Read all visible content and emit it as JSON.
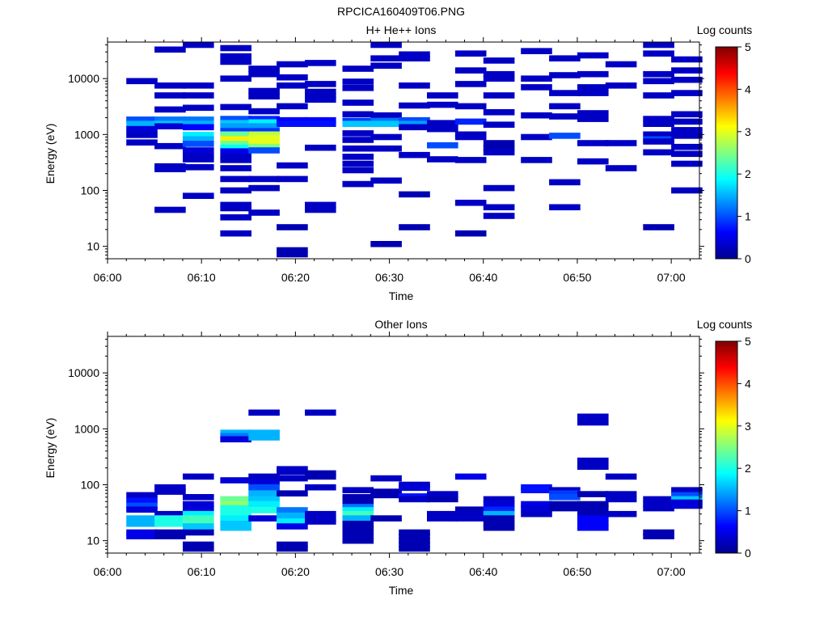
{
  "page": {
    "title": "RPCICA160409T06.PNG"
  },
  "colors": {
    "scale": [
      "#00008f",
      "#0000ff",
      "#0080ff",
      "#00ffff",
      "#80ff80",
      "#ffff00",
      "#ff8000",
      "#ff0000",
      "#800000"
    ]
  },
  "chart_data": [
    {
      "type": "heatmap",
      "title": "H+ He++ Ions",
      "xlabel": "Time",
      "ylabel": "Energy (eV)",
      "xlim": [
        "06:00",
        "07:03"
      ],
      "ylim": [
        6,
        45000
      ],
      "y_scale": "log",
      "x_ticks": [
        "06:00",
        "06:10",
        "06:20",
        "06:30",
        "06:40",
        "06:50",
        "07:00"
      ],
      "y_ticks": [
        "10",
        "100",
        "1000",
        "10000"
      ],
      "colorbar": {
        "label": "Log counts",
        "range": [
          0,
          5
        ],
        "ticks": [
          "0",
          "1",
          "2",
          "3",
          "4",
          "5"
        ]
      },
      "columns_start": [
        "06:02",
        "06:05",
        "06:08",
        "06:12",
        "06:15",
        "06:18",
        "06:21",
        "06:25",
        "06:28",
        "06:31",
        "06:34",
        "06:37",
        "06:40",
        "06:44",
        "06:47",
        "06:50",
        "06:53",
        "06:57",
        "07:00"
      ],
      "column_width_min": 3.3,
      "cells": [
        {
          "t": "06:02",
          "e": [
            9000,
            1850,
            1550,
            1250,
            980,
            720
          ],
          "v": [
            0.3,
            1.0,
            1.5,
            0.4,
            0.3,
            0.3
          ]
        },
        {
          "t": "06:05",
          "e": [
            33000,
            7500,
            5000,
            2800,
            1850,
            1550,
            1400,
            620,
            270,
            240,
            45
          ],
          "v": [
            0.3,
            0.3,
            0.3,
            0.3,
            1.2,
            1.6,
            0.4,
            0.3,
            0.3,
            0.3,
            0.3
          ]
        },
        {
          "t": "06:08",
          "e": [
            40000,
            7500,
            5000,
            3000,
            1850,
            1550,
            1350,
            980,
            820,
            680,
            520,
            410,
            360,
            260,
            80
          ],
          "v": [
            0.3,
            0.3,
            0.3,
            0.3,
            1.2,
            1.5,
            0.6,
            1.8,
            1.5,
            1.0,
            0.4,
            0.3,
            0.3,
            0.3,
            0.3
          ]
        },
        {
          "t": "06:12",
          "e": [
            35000,
            25000,
            20000,
            10000,
            3100,
            1900,
            1600,
            1400,
            1150,
            1000,
            820,
            680,
            580,
            500,
            400,
            350,
            250,
            160,
            100,
            55,
            48,
            33,
            17
          ],
          "v": [
            0.3,
            0.3,
            0.3,
            0.3,
            0.3,
            1.0,
            1.6,
            1.4,
            0.9,
            2.4,
            3.2,
            2.4,
            1.9,
            0.5,
            0.3,
            0.3,
            0.3,
            0.3,
            0.3,
            0.3,
            0.3,
            0.3,
            0.3
          ]
        },
        {
          "t": "06:15",
          "e": [
            15000,
            12000,
            6000,
            4800,
            2600,
            1900,
            1650,
            1400,
            1150,
            1000,
            850,
            720,
            600,
            520,
            160,
            110,
            40
          ],
          "v": [
            0.3,
            0.3,
            0.3,
            0.3,
            0.3,
            0.8,
            1.8,
            1.4,
            0.9,
            2.8,
            3.0,
            3.0,
            2.5,
            1.0,
            0.3,
            0.3,
            0.3
          ]
        },
        {
          "t": "06:18",
          "e": [
            18000,
            10500,
            7500,
            3200,
            1800,
            1550,
            280,
            160,
            22,
            8.5,
            7.2
          ],
          "v": [
            0.3,
            0.3,
            0.3,
            0.3,
            0.6,
            0.7,
            0.3,
            0.3,
            0.2,
            0.2,
            0.2
          ]
        },
        {
          "t": "06:21",
          "e": [
            19000,
            8000,
            5800,
            5000,
            4200,
            1800,
            1550,
            580,
            55,
            45
          ],
          "v": [
            0.3,
            0.3,
            0.3,
            0.3,
            0.3,
            0.6,
            0.7,
            0.3,
            0.3,
            0.3
          ]
        },
        {
          "t": "06:25",
          "e": [
            15000,
            8800,
            6800,
            3700,
            2300,
            1750,
            1550,
            1050,
            800,
            560,
            400,
            300,
            230,
            130
          ],
          "v": [
            0.3,
            0.3,
            0.3,
            0.3,
            0.3,
            0.9,
            1.6,
            0.3,
            0.3,
            0.3,
            0.3,
            0.3,
            0.3,
            0.3
          ]
        },
        {
          "t": "06:28",
          "e": [
            40000,
            23000,
            17000,
            2200,
            1750,
            1550,
            900,
            560,
            150,
            11
          ],
          "v": [
            0.3,
            0.3,
            0.3,
            0.3,
            1.2,
            1.6,
            0.3,
            0.3,
            0.3,
            0.2
          ]
        },
        {
          "t": "06:31",
          "e": [
            27000,
            23000,
            7500,
            3300,
            1800,
            1550,
            1350,
            430,
            85,
            22
          ],
          "v": [
            0.3,
            0.3,
            0.3,
            0.3,
            1.0,
            1.4,
            0.3,
            0.3,
            0.2,
            0.2
          ]
        },
        {
          "t": "06:34",
          "e": [
            5000,
            3400,
            1600,
            1250,
            640,
            360
          ],
          "v": [
            0.3,
            0.3,
            0.3,
            0.3,
            1.0,
            0.3
          ]
        },
        {
          "t": "06:37",
          "e": [
            28000,
            14000,
            8000,
            3200,
            1700,
            1000,
            900,
            350,
            60,
            17
          ],
          "v": [
            0.3,
            0.3,
            0.3,
            0.3,
            0.8,
            0.3,
            0.3,
            0.3,
            0.3,
            0.2
          ]
        },
        {
          "t": "06:40",
          "e": [
            21000,
            12000,
            10000,
            5000,
            2500,
            1500,
            700,
            570,
            480,
            110,
            50,
            35
          ],
          "v": [
            0.3,
            0.3,
            0.3,
            0.3,
            0.3,
            0.3,
            0.2,
            0.2,
            0.3,
            0.3,
            0.3,
            0.3
          ]
        },
        {
          "t": "06:44",
          "e": [
            31000,
            10000,
            7000,
            2200,
            900,
            350
          ],
          "v": [
            0.3,
            0.3,
            0.3,
            0.3,
            0.3,
            0.3
          ]
        },
        {
          "t": "06:47",
          "e": [
            23000,
            11500,
            5500,
            3200,
            2100,
            950,
            140,
            50
          ],
          "v": [
            0.3,
            0.3,
            0.3,
            0.3,
            0.3,
            1.0,
            0.3,
            0.3
          ]
        },
        {
          "t": "06:50",
          "e": [
            26000,
            12000,
            7000,
            5500,
            2400,
            1900,
            700,
            330
          ],
          "v": [
            0.3,
            0.3,
            0.3,
            0.3,
            0.3,
            0.3,
            0.3,
            0.3
          ]
        },
        {
          "t": "06:53",
          "e": [
            18000,
            7500,
            700,
            250
          ],
          "v": [
            0.3,
            0.3,
            0.3,
            0.3
          ]
        },
        {
          "t": "06:57",
          "e": [
            40000,
            28000,
            12000,
            9000,
            5000,
            1900,
            1550,
            1000,
            820,
            750,
            480,
            22
          ],
          "v": [
            0.3,
            0.3,
            0.3,
            0.3,
            0.3,
            0.3,
            0.3,
            0.3,
            1.0,
            0.3,
            0.3,
            0.2
          ]
        },
        {
          "t": "07:00",
          "e": [
            22000,
            14000,
            9500,
            5500,
            2300,
            1700,
            1200,
            950,
            600,
            450,
            300,
            100
          ],
          "v": [
            0.3,
            0.3,
            0.3,
            0.3,
            0.3,
            0.3,
            0.3,
            0.3,
            0.3,
            0.3,
            0.3,
            0.3
          ]
        }
      ]
    },
    {
      "type": "heatmap",
      "title": "Other Ions",
      "xlabel": "Time",
      "ylabel": "Energy (eV)",
      "xlim": [
        "06:00",
        "07:03"
      ],
      "ylim": [
        6,
        45000
      ],
      "y_scale": "log",
      "x_ticks": [
        "06:00",
        "06:10",
        "06:20",
        "06:30",
        "06:40",
        "06:50",
        "07:00"
      ],
      "y_ticks": [
        "10",
        "100",
        "1000",
        "10000"
      ],
      "colorbar": {
        "label": "Log counts",
        "range": [
          0,
          5
        ],
        "ticks": [
          "0",
          "1",
          "2",
          "3",
          "4",
          "5"
        ]
      },
      "columns_start": [
        "06:02",
        "06:05",
        "06:08",
        "06:12",
        "06:15",
        "06:18",
        "06:21",
        "06:25",
        "06:28",
        "06:31",
        "06:34",
        "06:37",
        "06:40",
        "06:44",
        "06:47",
        "06:50",
        "06:53",
        "06:57",
        "07:00"
      ],
      "column_width_min": 3.3,
      "cells": [
        {
          "t": "06:02",
          "e": [
            65,
            52,
            42,
            36,
            25,
            20,
            14,
            12
          ],
          "v": [
            0.3,
            0.7,
            1.0,
            0.4,
            1.5,
            1.5,
            0.5,
            0.5
          ]
        },
        {
          "t": "06:05",
          "e": [
            90,
            75,
            30,
            25,
            20,
            14,
            12
          ],
          "v": [
            0.3,
            0.3,
            0.3,
            2.0,
            2.0,
            0.2,
            0.2
          ]
        },
        {
          "t": "06:08",
          "e": [
            140,
            60,
            45,
            38,
            30,
            25,
            22,
            18,
            14,
            8.5,
            7.2
          ],
          "v": [
            0.3,
            0.3,
            0.4,
            0.4,
            1.8,
            2.2,
            2.2,
            1.6,
            0.2,
            0.2,
            0.2
          ]
        },
        {
          "t": "06:12",
          "e": [
            850,
            740,
            650,
            120,
            55,
            45,
            38,
            30,
            25,
            20,
            17
          ],
          "v": [
            1.5,
            1.2,
            0.4,
            0.4,
            2.4,
            2.6,
            2.0,
            2.0,
            1.8,
            1.6,
            1.6
          ]
        },
        {
          "t": "06:15",
          "e": [
            1950,
            850,
            700,
            140,
            110,
            90,
            70,
            55,
            45,
            35,
            25
          ],
          "v": [
            0.3,
            1.5,
            1.5,
            0.3,
            0.4,
            1.0,
            1.5,
            1.6,
            1.8,
            2.0,
            0.4
          ]
        },
        {
          "t": "06:18",
          "e": [
            190,
            170,
            130,
            70,
            35,
            28,
            22,
            18,
            8.5,
            7.2
          ],
          "v": [
            0.3,
            0.3,
            0.3,
            0.2,
            1.2,
            1.5,
            1.8,
            0.5,
            0.2,
            0.2
          ]
        },
        {
          "t": "06:21",
          "e": [
            1950,
            160,
            140,
            90,
            30,
            25,
            22
          ],
          "v": [
            0.3,
            0.2,
            0.2,
            0.3,
            0.3,
            0.3,
            0.3
          ]
        },
        {
          "t": "06:25",
          "e": [
            80,
            60,
            50,
            40,
            35,
            30,
            25,
            20,
            17,
            14,
            12,
            10
          ],
          "v": [
            0.3,
            0.2,
            0.2,
            1.2,
            1.8,
            2.2,
            1.5,
            0.2,
            0.2,
            0.2,
            0.2,
            0.2
          ]
        },
        {
          "t": "06:28",
          "e": [
            130,
            75,
            65,
            25
          ],
          "v": [
            0.3,
            0.2,
            0.2,
            0.2
          ]
        },
        {
          "t": "06:31",
          "e": [
            100,
            88,
            62,
            55,
            14,
            12,
            10,
            8.5,
            7.2
          ],
          "v": [
            0.3,
            0.4,
            0.7,
            0.3,
            0.2,
            0.2,
            0.2,
            0.2,
            0.2
          ]
        },
        {
          "t": "06:34",
          "e": [
            68,
            55,
            30,
            25
          ],
          "v": [
            0.3,
            0.2,
            0.3,
            0.3
          ]
        },
        {
          "t": "06:37",
          "e": [
            140,
            36,
            30,
            25
          ],
          "v": [
            0.5,
            0.2,
            0.3,
            0.3
          ]
        },
        {
          "t": "06:40",
          "e": [
            55,
            45,
            36,
            30,
            25,
            20,
            17
          ],
          "v": [
            0.3,
            0.4,
            0.8,
            1.5,
            0.2,
            0.2,
            0.2
          ]
        },
        {
          "t": "06:44",
          "e": [
            90,
            80,
            45,
            38,
            30
          ],
          "v": [
            0.7,
            0.7,
            0.5,
            0.4,
            0.3
          ]
        },
        {
          "t": "06:47",
          "e": [
            80,
            70,
            60,
            45,
            38
          ],
          "v": [
            0.3,
            0.9,
            1.0,
            0.2,
            0.2
          ]
        },
        {
          "t": "06:50",
          "e": [
            1650,
            1300,
            270,
            210,
            68,
            45,
            38,
            30,
            25,
            20,
            17
          ],
          "v": [
            0.3,
            0.3,
            0.3,
            0.3,
            0.2,
            0.2,
            0.2,
            0.2,
            0.6,
            0.6,
            0.6
          ]
        },
        {
          "t": "06:53",
          "e": [
            140,
            68,
            55,
            30
          ],
          "v": [
            0.3,
            0.3,
            0.3,
            0.3
          ]
        },
        {
          "t": "06:57",
          "e": [
            55,
            45,
            38,
            14,
            12
          ],
          "v": [
            0.3,
            0.3,
            0.3,
            0.2,
            0.2
          ]
        },
        {
          "t": "07:00",
          "e": [
            80,
            65,
            55,
            48,
            42
          ],
          "v": [
            0.3,
            1.0,
            1.6,
            0.4,
            0.4
          ]
        }
      ]
    }
  ]
}
